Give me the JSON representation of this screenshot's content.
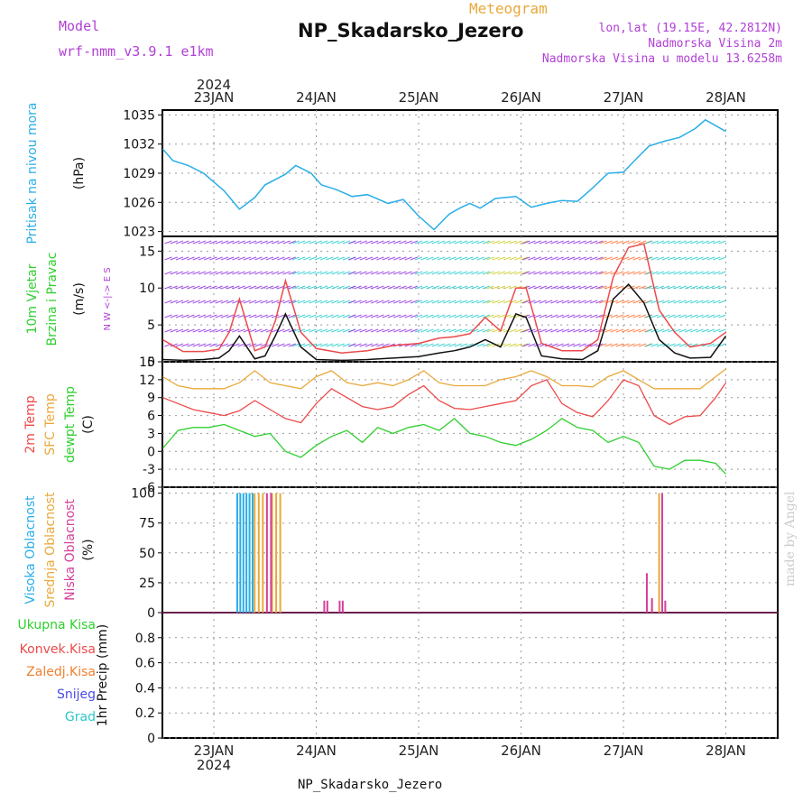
{
  "header": {
    "title": "NP_Skadarsko_Jezero",
    "subtitle": "Meteogram",
    "model_label": "Model",
    "model_name": "wrf-nmm_v3.9.1 e1km",
    "location": "lon,lat (19.15E, 42.2812N)",
    "height_label": "Nadmorska Visina 2m",
    "model_height_label": "Nadmorska Visina u modelu 13.6258m"
  },
  "footer": "NP_Skadarsko_Jezero",
  "credit": "made by Angel",
  "colors": {
    "pressure": "#29aee8",
    "temp2m": "#ec4a4a",
    "sfc": "#e8a93a",
    "dewpt": "#2fcf2f",
    "high_cloud": "#29aee8",
    "mid_cloud": "#e8a93a",
    "low_cloud": "#d43f9a",
    "wind_gust": "#ec4a4a",
    "wind_speed": "#111111",
    "grid": "#999999"
  },
  "time_axis": {
    "ticks": [
      "23JAN",
      "24JAN",
      "25JAN",
      "26JAN",
      "27JAN",
      "28JAN"
    ],
    "year": "2024"
  },
  "chart_data": [
    {
      "type": "line",
      "panel": "pressure",
      "ylabels": [
        "Pritisak na nivou mora",
        "(hPa)"
      ],
      "ylim": [
        1022.5,
        1035.5
      ],
      "yticks": [
        1023,
        1026,
        1029,
        1032,
        1035
      ],
      "x_days": [
        0,
        0.1,
        0.25,
        0.4,
        0.6,
        0.75,
        0.9,
        1.0,
        1.2,
        1.3,
        1.45,
        1.55,
        1.7,
        1.85,
        2.0,
        2.2,
        2.35,
        2.5,
        2.65,
        2.8,
        2.9,
        3.0,
        3.1,
        3.25,
        3.45,
        3.6,
        3.75,
        3.9,
        4.05,
        4.2,
        4.35,
        4.5,
        4.6,
        4.75,
        4.9,
        5.05,
        5.2,
        5.3,
        5.5
      ],
      "series": [
        {
          "values": [
            1031.5,
            1030.3,
            1029.8,
            1029.0,
            1027.2,
            1025.3,
            1026.5,
            1027.8,
            1028.9,
            1029.8,
            1029.0,
            1027.8,
            1027.3,
            1026.6,
            1026.8,
            1025.9,
            1026.3,
            1024.6,
            1023.2,
            1024.8,
            1025.4,
            1025.9,
            1025.4,
            1026.4,
            1026.6,
            1025.5,
            1025.9,
            1026.2,
            1026.1,
            1027.5,
            1029.0,
            1029.1,
            1030.2,
            1031.8,
            1032.3,
            1032.7,
            1033.6,
            1034.5,
            1033.3
          ]
        }
      ]
    },
    {
      "type": "line",
      "panel": "wind",
      "ylabels": [
        "10m Vjetar",
        "Brzina i Pravac",
        "(m/s)"
      ],
      "axis_note": [
        "N",
        "W <-|-> E",
        "S"
      ],
      "ylim": [
        0,
        17
      ],
      "yticks": [
        0,
        5,
        10,
        15
      ],
      "x_days": [
        0,
        0.2,
        0.4,
        0.55,
        0.65,
        0.75,
        0.9,
        1.0,
        1.1,
        1.2,
        1.35,
        1.5,
        1.75,
        2.0,
        2.25,
        2.5,
        2.7,
        2.85,
        3.0,
        3.15,
        3.3,
        3.45,
        3.55,
        3.7,
        3.9,
        4.1,
        4.25,
        4.4,
        4.55,
        4.7,
        4.85,
        5.0,
        5.15,
        5.35,
        5.5
      ],
      "series": [
        {
          "name": "gust",
          "values": [
            3.0,
            1.4,
            1.4,
            1.7,
            4.0,
            8.5,
            1.5,
            2.0,
            5.5,
            11.0,
            4.0,
            1.8,
            1.2,
            1.5,
            2.2,
            2.5,
            3.2,
            3.4,
            3.8,
            6.0,
            4.2,
            10.0,
            10.0,
            2.5,
            1.5,
            1.5,
            3.0,
            11.5,
            15.5,
            16.0,
            7.0,
            4.0,
            2.0,
            2.5,
            4.0
          ]
        },
        {
          "name": "speed",
          "values": [
            0.3,
            0.2,
            0.3,
            0.5,
            1.5,
            3.5,
            0.4,
            0.8,
            3.5,
            6.5,
            2.0,
            0.3,
            0.2,
            0.3,
            0.5,
            0.7,
            1.2,
            1.5,
            2.0,
            3.0,
            2.0,
            6.5,
            6.0,
            0.8,
            0.4,
            0.3,
            1.5,
            8.5,
            10.5,
            8.0,
            3.0,
            1.2,
            0.5,
            0.6,
            3.5
          ]
        }
      ]
    },
    {
      "type": "line",
      "panel": "temperature",
      "ylabels": [
        "2m Temp",
        "SFC Temp",
        "dewpt Temp",
        "(C)"
      ],
      "ylim": [
        -6,
        15
      ],
      "yticks": [
        -6,
        -3,
        0,
        3,
        6,
        9,
        12,
        15
      ],
      "x_days": [
        0,
        0.15,
        0.3,
        0.45,
        0.6,
        0.75,
        0.9,
        1.05,
        1.2,
        1.35,
        1.5,
        1.65,
        1.8,
        1.95,
        2.1,
        2.25,
        2.4,
        2.55,
        2.7,
        2.85,
        3.0,
        3.15,
        3.3,
        3.45,
        3.6,
        3.75,
        3.9,
        4.05,
        4.2,
        4.35,
        4.5,
        4.65,
        4.8,
        4.95,
        5.1,
        5.25,
        5.4,
        5.5
      ],
      "series": [
        {
          "name": "2m",
          "values": [
            9.0,
            8.0,
            7.0,
            6.5,
            6.0,
            6.8,
            8.5,
            7.0,
            5.5,
            4.8,
            8.0,
            10.5,
            9.0,
            7.5,
            7.0,
            7.5,
            9.5,
            11.0,
            8.5,
            7.2,
            7.0,
            7.5,
            8.0,
            8.5,
            11.0,
            12.0,
            8.0,
            6.5,
            5.8,
            8.5,
            12.0,
            11.0,
            6.0,
            4.5,
            5.8,
            6.0,
            9.0,
            11.5
          ]
        },
        {
          "name": "sfc",
          "values": [
            12.5,
            11.0,
            10.5,
            10.5,
            10.5,
            11.5,
            13.5,
            11.5,
            11.0,
            10.5,
            12.5,
            13.5,
            11.5,
            11.0,
            11.5,
            11.0,
            12.0,
            13.5,
            11.5,
            11.0,
            11.0,
            11.0,
            12.0,
            12.5,
            13.5,
            12.5,
            11.0,
            11.0,
            10.8,
            12.5,
            13.5,
            12.0,
            10.5,
            10.5,
            10.5,
            10.5,
            12.5,
            13.8
          ]
        },
        {
          "name": "dewpt",
          "values": [
            0.5,
            3.5,
            4.0,
            4.0,
            4.5,
            3.5,
            2.5,
            3.0,
            0.0,
            -1.0,
            1.0,
            2.5,
            3.5,
            1.5,
            4.0,
            3.0,
            4.0,
            4.5,
            3.5,
            5.5,
            3.0,
            2.5,
            1.5,
            1.0,
            2.0,
            3.5,
            5.5,
            4.0,
            3.5,
            1.5,
            2.5,
            1.5,
            -2.5,
            -3.0,
            -1.5,
            -1.5,
            -2.0,
            -3.8
          ]
        }
      ]
    },
    {
      "type": "bar",
      "panel": "cloud",
      "ylabels": [
        "Visoka Oblacnost",
        "Srednja Oblacnost",
        "Niska Oblacnost",
        "(%)"
      ],
      "ylim": [
        0,
        105
      ],
      "yticks": [
        0,
        25,
        50,
        75,
        100
      ],
      "series": [
        {
          "name": "high",
          "x_days": [
            0.2,
            0.23,
            0.26,
            0.29,
            0.32,
            0.35
          ],
          "values": [
            100,
            100,
            100,
            100,
            100,
            100
          ]
        },
        {
          "name": "mid",
          "x_days": [
            0.37,
            0.41,
            0.45,
            0.54,
            0.58,
            0.62,
            4.25,
            4.32
          ],
          "values": [
            100,
            100,
            100,
            100,
            100,
            100,
            12,
            100
          ]
        },
        {
          "name": "low",
          "x_days": [
            0.49,
            0.53,
            1.05,
            1.08,
            1.2,
            1.23,
            4.2,
            4.25,
            4.35,
            4.38
          ],
          "values": [
            100,
            100,
            10,
            10,
            10,
            10,
            33,
            12,
            100,
            10
          ]
        }
      ]
    },
    {
      "type": "line",
      "panel": "precip",
      "ylabels": [
        "1hr Precip (mm)"
      ],
      "legend": [
        "Ukupna Kisa",
        "Konvek.Kisa",
        "Zaledj.Kisa",
        "Snijeg",
        "Grad"
      ],
      "ylim": [
        0,
        1.0
      ],
      "yticks": [
        0,
        0.2,
        0.4,
        0.6,
        0.8
      ],
      "series": [
        {
          "name": "total",
          "values": [
            0
          ]
        }
      ]
    }
  ]
}
